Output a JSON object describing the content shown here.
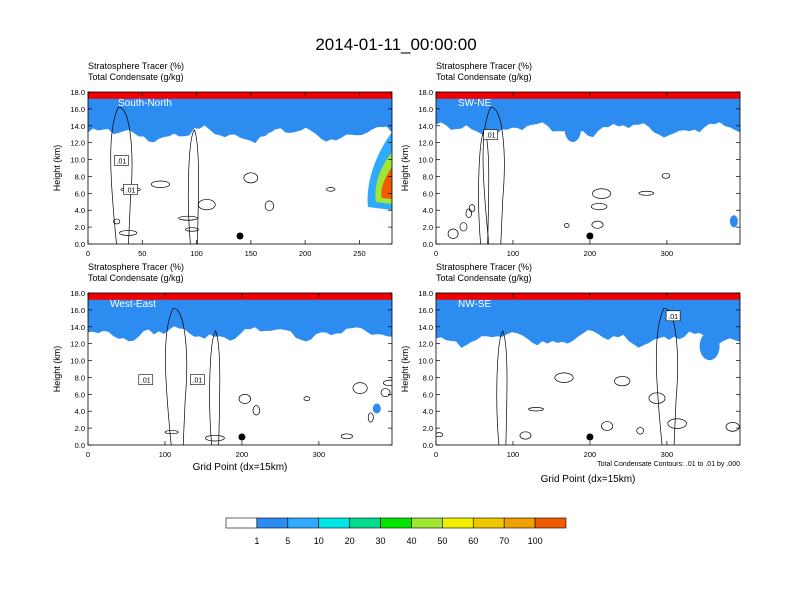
{
  "title": "2014-01-11_00:00:00",
  "chart_data": [
    {
      "type": "heatmap",
      "panel": "South-North",
      "panel_label": "South-North",
      "header_line1": "Stratosphere Tracer   (%)",
      "header_line2": "Total Condensate   (g/kg)",
      "ylabel": "Height (km)",
      "xlabel": "",
      "xlim": [
        0,
        280
      ],
      "ylim": [
        0,
        18
      ],
      "xticks": [
        "0",
        "50",
        "100",
        "150",
        "200",
        "250"
      ],
      "xtick_values": [
        0,
        50,
        100,
        150,
        200,
        250
      ],
      "yticks": [
        "0.0",
        "2.0",
        "4.0",
        "6.0",
        "8.0",
        "10.0",
        "12.0",
        "14.0",
        "16.0",
        "18.0"
      ],
      "contour_labels": [
        ".01",
        ".01"
      ],
      "marker_x": 140,
      "tracer_base_km": 13.6,
      "footnote": ""
    },
    {
      "type": "heatmap",
      "panel": "SW-NE",
      "panel_label": "SW-NE",
      "header_line1": "Stratosphere Tracer   (%)",
      "header_line2": "Total Condensate   (g/kg)",
      "ylabel": "Height (km)",
      "xlabel": "",
      "xlim": [
        0,
        395
      ],
      "ylim": [
        0,
        18
      ],
      "xticks": [
        "0",
        "100",
        "200",
        "300"
      ],
      "xtick_values": [
        0,
        100,
        200,
        300
      ],
      "yticks": [
        "0.0",
        "2.0",
        "4.0",
        "6.0",
        "8.0",
        "10.0",
        "12.0",
        "14.0",
        "16.0",
        "18.0"
      ],
      "contour_labels": [
        ".01"
      ],
      "marker_x": 200,
      "tracer_base_km": 14.2,
      "footnote": ""
    },
    {
      "type": "heatmap",
      "panel": "West-East",
      "panel_label": "West-East",
      "header_line1": "Stratosphere Tracer   (%)",
      "header_line2": "Total Condensate   (g/kg)",
      "ylabel": "Height (km)",
      "xlabel": "Grid Point (dx=15km)",
      "xlim": [
        0,
        395
      ],
      "ylim": [
        0,
        18
      ],
      "xticks": [
        "0",
        "100",
        "200",
        "300"
      ],
      "xtick_values": [
        0,
        100,
        200,
        300
      ],
      "yticks": [
        "0.0",
        "2.0",
        "4.0",
        "6.0",
        "8.0",
        "10.0",
        "12.0",
        "14.0",
        "16.0",
        "18.0"
      ],
      "contour_labels": [
        ".01",
        ".01"
      ],
      "marker_x": 200,
      "tracer_base_km": 13.8,
      "footnote": ""
    },
    {
      "type": "heatmap",
      "panel": "NW-SE",
      "panel_label": "NW-SE",
      "header_line1": "Stratosphere Tracer   (%)",
      "header_line2": "Total Condensate   (g/kg)",
      "ylabel": "Height (km)",
      "xlabel": "Grid Point (dx=15km)",
      "xlim": [
        0,
        395
      ],
      "ylim": [
        0,
        18
      ],
      "xticks": [
        "0",
        "100",
        "200",
        "300"
      ],
      "xtick_values": [
        0,
        100,
        200,
        300
      ],
      "yticks": [
        "0.0",
        "2.0",
        "4.0",
        "6.0",
        "8.0",
        "10.0",
        "12.0",
        "14.0",
        "16.0",
        "18.0"
      ],
      "contour_labels": [
        ".01"
      ],
      "marker_x": 200,
      "tracer_base_km": 13.2,
      "footnote": "Total Condensate Contours: .01 to .01 by .000"
    }
  ],
  "colorbar": {
    "levels": [
      "1",
      "5",
      "10",
      "20",
      "30",
      "40",
      "50",
      "60",
      "70",
      "100"
    ],
    "colors": [
      "#ffffff",
      "#2d8cf0",
      "#2eaaff",
      "#00e6e6",
      "#00dc8c",
      "#00e600",
      "#a0e632",
      "#f0f000",
      "#f0c800",
      "#f0a000",
      "#f05a00",
      "#f00000"
    ]
  }
}
